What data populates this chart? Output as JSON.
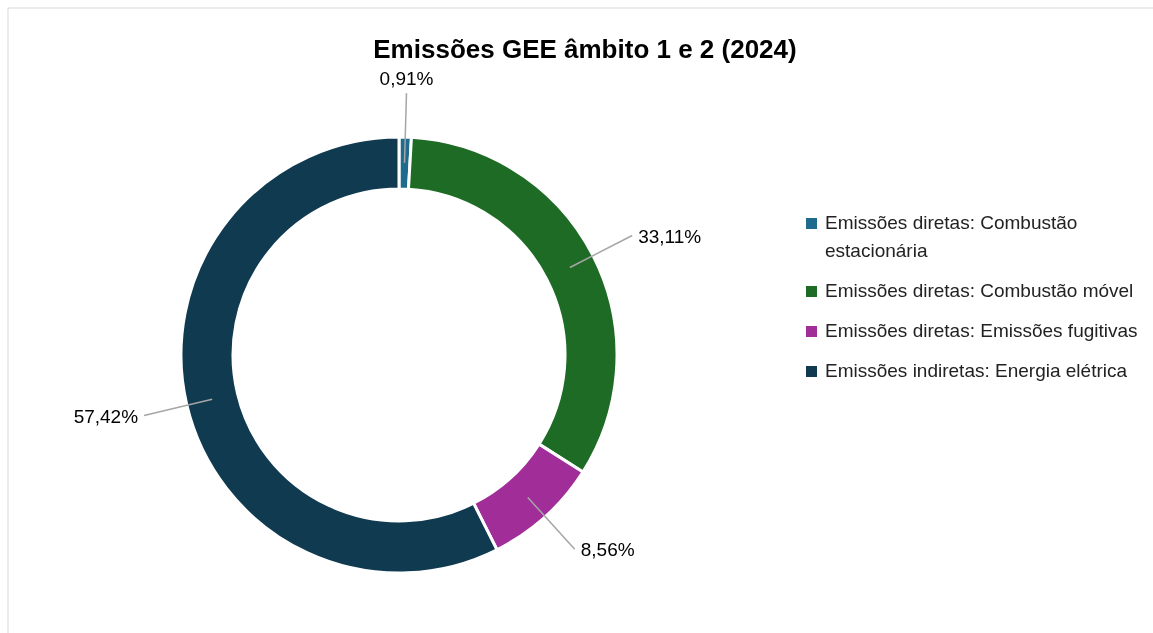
{
  "chart_data": {
    "type": "donut",
    "title": "Emissões GEE âmbito 1 e 2 (2024)",
    "categories": [
      "Emissões diretas: Combustão estacionária",
      "Emissões diretas: Combustão móvel",
      "Emissões diretas: Emissões fugitivas",
      "Emissões indiretas: Energia elétrica"
    ],
    "values": [
      0.91,
      33.11,
      8.56,
      57.42
    ],
    "value_labels": [
      "0,91%",
      "33,11%",
      "8,56%",
      "57,42%"
    ],
    "colors": [
      "#1f6b8e",
      "#1d6b24",
      "#a02d98",
      "#0f3a50"
    ],
    "legend": "right"
  }
}
